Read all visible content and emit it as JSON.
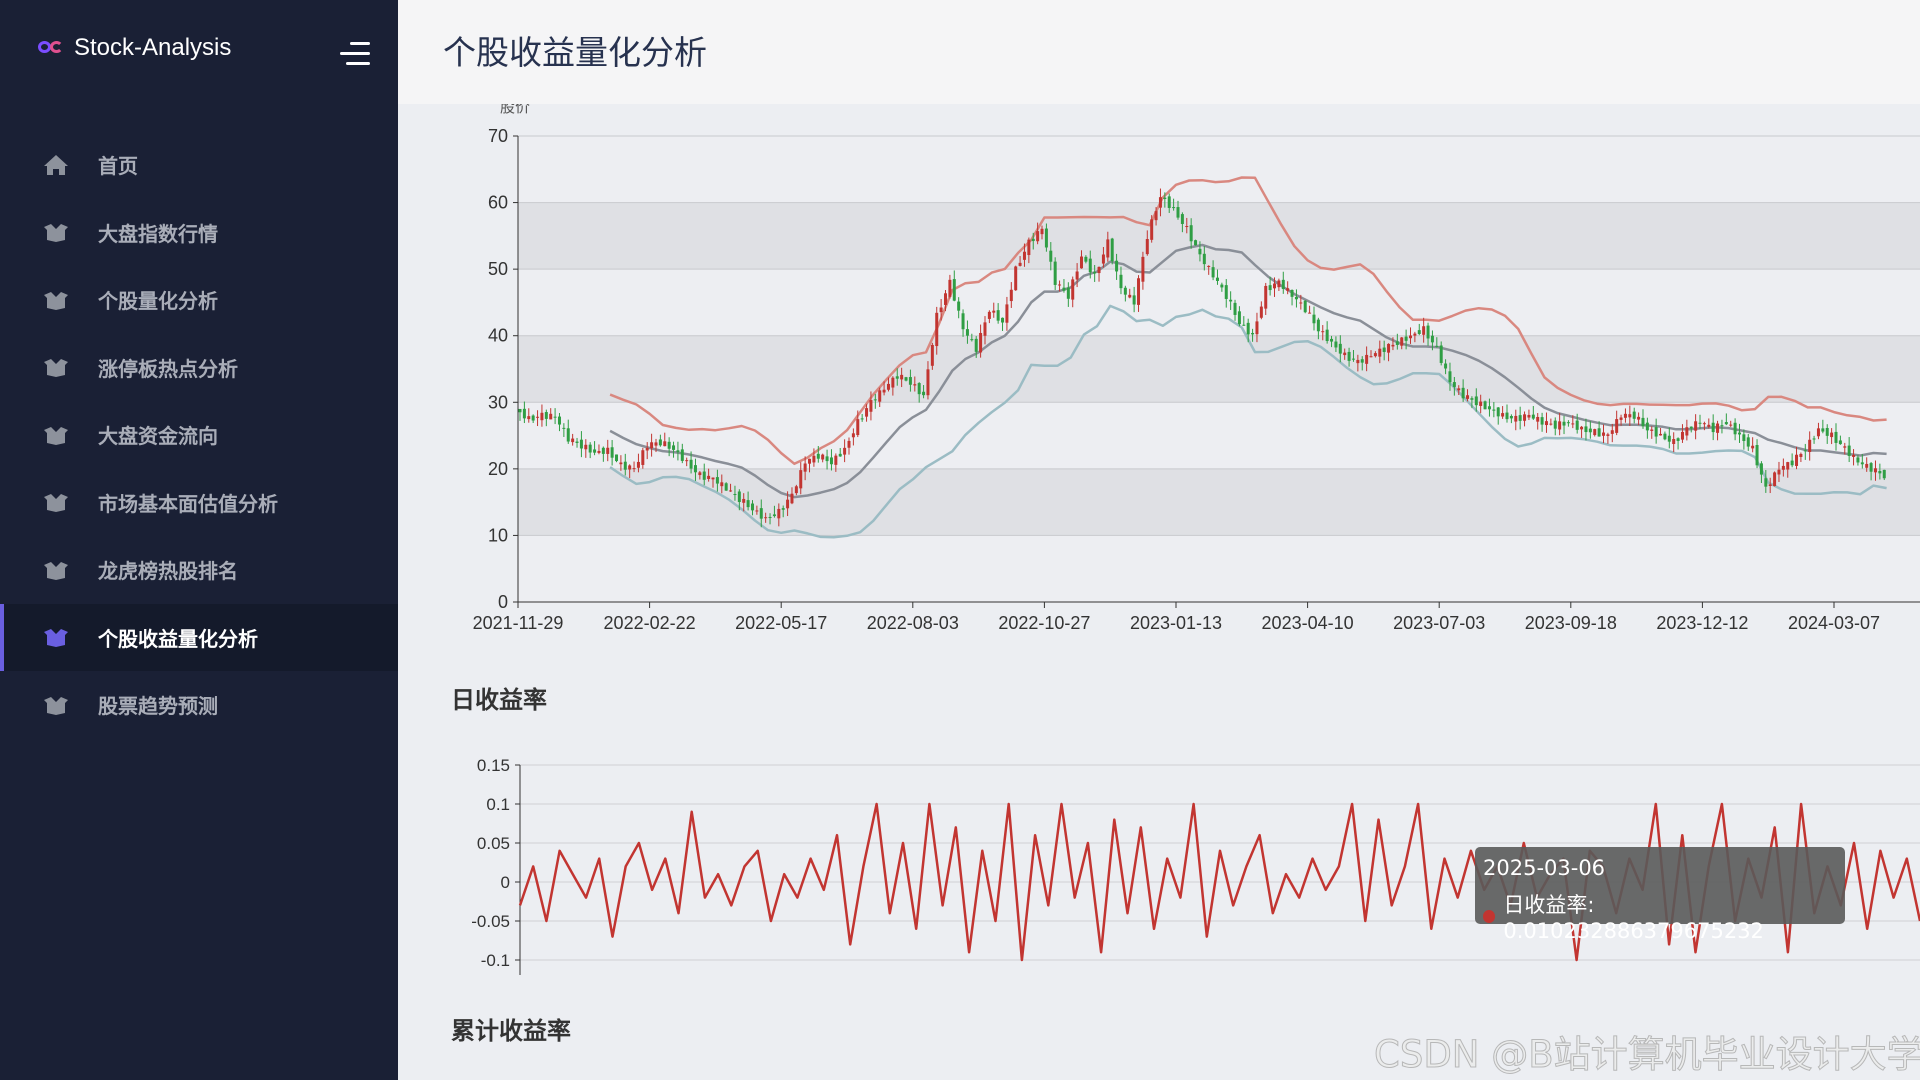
{
  "app": {
    "name": "Stock-Analysis",
    "logo_icon": "infinity-logo-icon",
    "menu_toggle_icon": "hamburger-icon"
  },
  "sidebar": {
    "items": [
      {
        "label": "首页",
        "icon": "home-icon",
        "active": false
      },
      {
        "label": "大盘指数行情",
        "icon": "box-icon",
        "active": false
      },
      {
        "label": "个股量化分析",
        "icon": "box-icon",
        "active": false
      },
      {
        "label": "涨停板热点分析",
        "icon": "box-icon",
        "active": false
      },
      {
        "label": "大盘资金流向",
        "icon": "box-icon",
        "active": false
      },
      {
        "label": "市场基本面估值分析",
        "icon": "box-icon",
        "active": false
      },
      {
        "label": "龙虎榜热股排名",
        "icon": "box-icon",
        "active": false
      },
      {
        "label": "个股收益量化分析",
        "icon": "box-icon",
        "active": true
      },
      {
        "label": "股票趋势预测",
        "icon": "box-icon",
        "active": false
      }
    ],
    "active_color": "#6a5fe0"
  },
  "header": {
    "title": "个股收益量化分析"
  },
  "sections": {
    "daily_return_title": "日收益率",
    "cumulative_return_title": "累计收益率"
  },
  "tooltip": {
    "date": "2025-03-06",
    "label": "日收益率: 0.010232886379675232"
  },
  "watermark": "CSDN @B站计算机毕业设计大学",
  "chart_data": [
    {
      "type": "candlestick",
      "ylabel": "股价",
      "ylim": [
        0,
        70
      ],
      "yticks": [
        0,
        10,
        20,
        30,
        40,
        50,
        60,
        70
      ],
      "xticks": [
        "2021-11-29",
        "2022-02-22",
        "2022-05-17",
        "2022-08-03",
        "2022-10-27",
        "2023-01-13",
        "2023-04-10",
        "2023-07-03",
        "2023-09-18",
        "2023-12-12",
        "2024-03-07"
      ],
      "grid": true,
      "colors": {
        "up": "#c23531",
        "down": "#2f9e44",
        "ma": "#8a8f98",
        "upper": "#d98880",
        "lower": "#9bbcc4"
      },
      "close": [
        29,
        27.5,
        28,
        27.8,
        24.5,
        23.5,
        22.5,
        22.8,
        20.5,
        20,
        23.5,
        24,
        23,
        21,
        19,
        18.5,
        17,
        15.5,
        14,
        12.5,
        13.5,
        16,
        21,
        22,
        21,
        23,
        27,
        30,
        32,
        34,
        33,
        31,
        43,
        48,
        41,
        38,
        44,
        42,
        50,
        54,
        56,
        48,
        46,
        52,
        49,
        54,
        47,
        45,
        55,
        61,
        59,
        56,
        52,
        49,
        46,
        42,
        40,
        47,
        48,
        46,
        44,
        41,
        39,
        37,
        36,
        37,
        38,
        39,
        40,
        41,
        38,
        33,
        31,
        30,
        29,
        28,
        27.5,
        28,
        27,
        26.5,
        27,
        26,
        25.5,
        25,
        28,
        28,
        26,
        25,
        24,
        26,
        27,
        26,
        27,
        25,
        23,
        17,
        20,
        21,
        23,
        26,
        25,
        23,
        21,
        20,
        19
      ]
    },
    {
      "type": "line",
      "title": "日收益率",
      "ylim": [
        -0.1,
        0.15
      ],
      "yticks": [
        "0.15",
        "0.1",
        "0.05",
        "0",
        "-0.05",
        "-0.1"
      ],
      "grid": true,
      "color": "#c23531",
      "values": [
        -0.03,
        0.02,
        -0.05,
        0.04,
        0.01,
        -0.02,
        0.03,
        -0.07,
        0.02,
        0.05,
        -0.01,
        0.03,
        -0.04,
        0.09,
        -0.02,
        0.01,
        -0.03,
        0.02,
        0.04,
        -0.05,
        0.01,
        -0.02,
        0.03,
        -0.01,
        0.06,
        -0.08,
        0.02,
        0.1,
        -0.04,
        0.05,
        -0.06,
        0.1,
        -0.03,
        0.07,
        -0.09,
        0.04,
        -0.05,
        0.1,
        -0.1,
        0.06,
        -0.03,
        0.1,
        -0.02,
        0.05,
        -0.09,
        0.08,
        -0.04,
        0.07,
        -0.06,
        0.03,
        -0.02,
        0.1,
        -0.07,
        0.04,
        -0.03,
        0.02,
        0.06,
        -0.04,
        0.01,
        -0.02,
        0.03,
        -0.01,
        0.02,
        0.1,
        -0.05,
        0.08,
        -0.03,
        0.02,
        0.1,
        -0.06,
        0.03,
        -0.02,
        0.04,
        -0.01,
        0.02,
        -0.03,
        0.05,
        -0.02,
        0.01,
        0.03,
        -0.1,
        0.04,
        0.02,
        -0.04,
        0.03,
        -0.01,
        0.1,
        -0.08,
        0.06,
        -0.09,
        0.02,
        0.1,
        -0.05,
        0.03,
        -0.02,
        0.07,
        -0.09,
        0.1,
        -0.04,
        0.02,
        -0.03,
        0.05,
        -0.06,
        0.04,
        -0.02,
        0.03,
        -0.05
      ]
    }
  ]
}
